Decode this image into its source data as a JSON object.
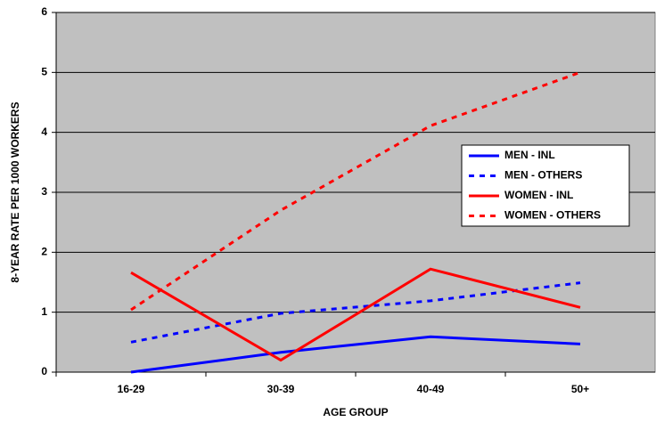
{
  "chart_data": {
    "type": "line",
    "x_label": "AGE GROUP",
    "y_label": "8-YEAR RATE PER 1000 WORKERS",
    "categories": [
      "16-29",
      "30-39",
      "40-49",
      "50+"
    ],
    "series": [
      {
        "name": "MEN - INL",
        "color": "#0000ff",
        "style": "solid",
        "values": [
          0,
          0.33,
          0.59,
          0.47
        ]
      },
      {
        "name": "MEN - OTHERS",
        "color": "#0000ff",
        "style": "dashed",
        "values": [
          0.5,
          0.98,
          1.19,
          1.49
        ]
      },
      {
        "name": "WOMEN - INL",
        "color": "#ff0000",
        "style": "solid",
        "values": [
          1.66,
          0.2,
          1.72,
          1.08
        ]
      },
      {
        "name": "WOMEN - OTHERS",
        "color": "#ff0000",
        "style": "dashed",
        "values": [
          1.04,
          2.7,
          4.11,
          5.0
        ]
      }
    ],
    "ylim": [
      0,
      6
    ],
    "yticks": [
      0,
      1,
      2,
      3,
      4,
      5,
      6
    ],
    "grid": true
  }
}
